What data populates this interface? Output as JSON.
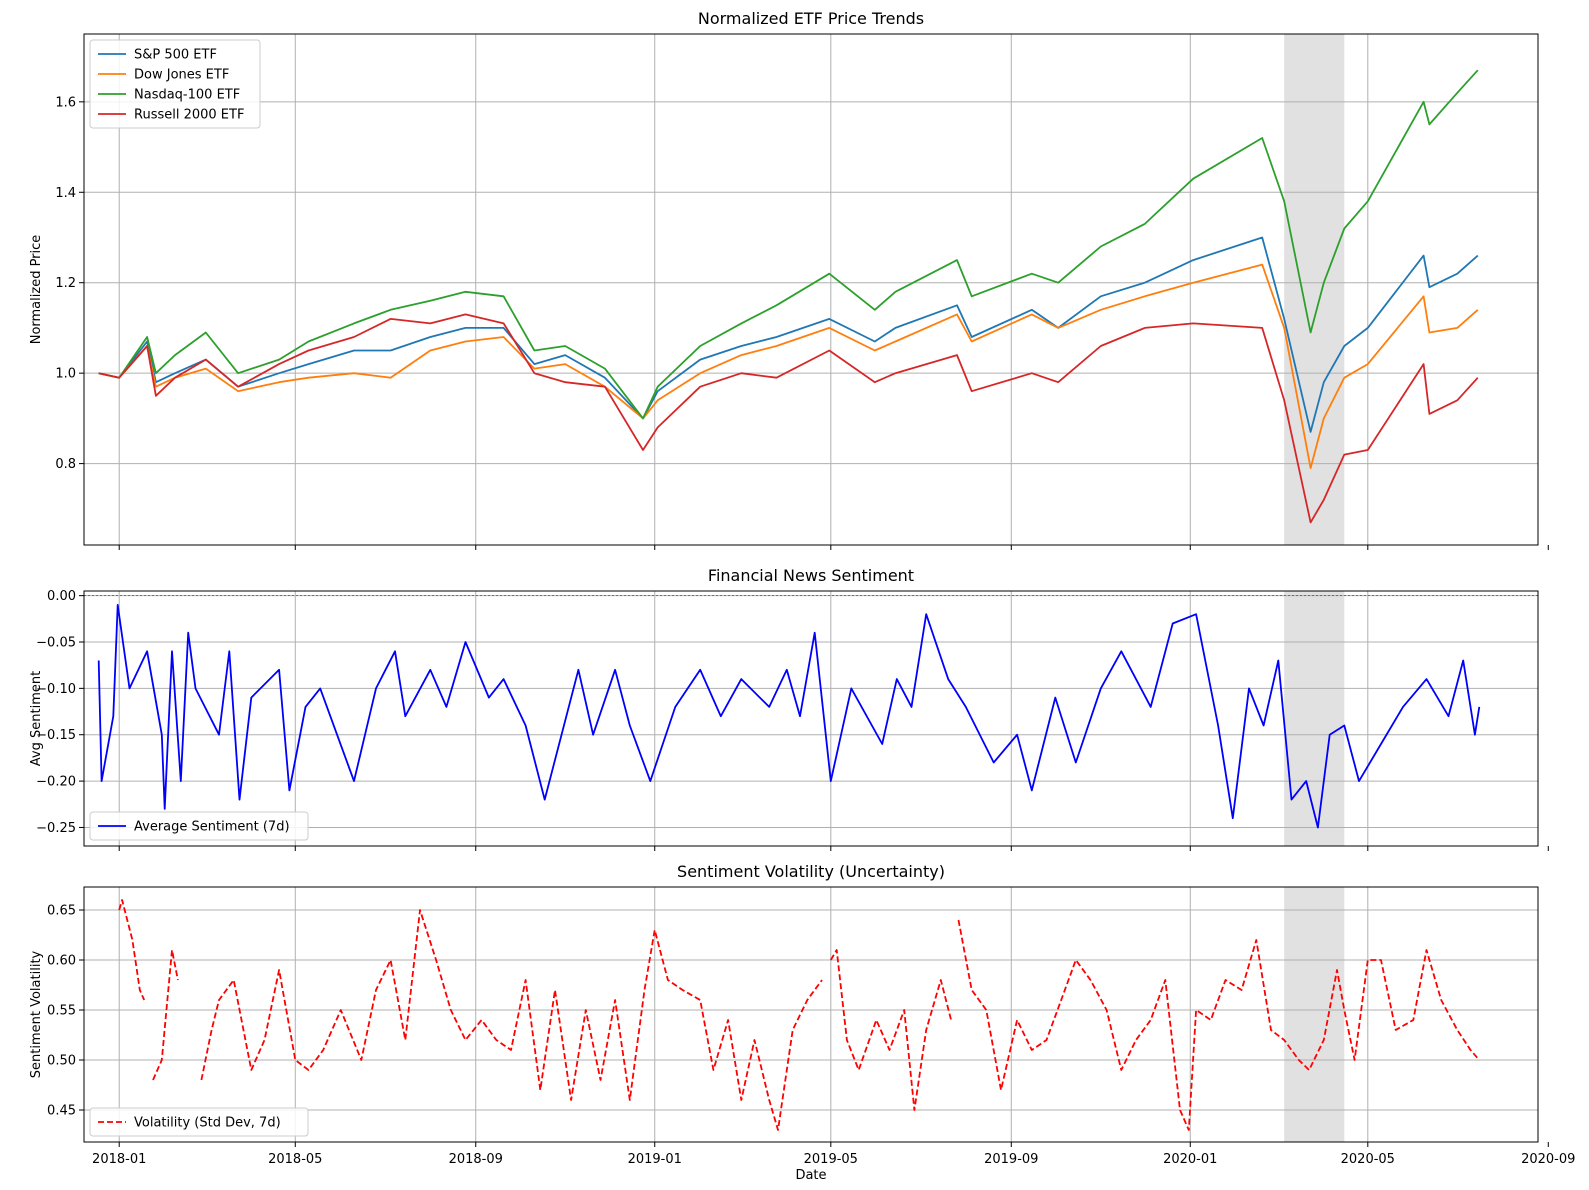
{
  "chart_data": [
    {
      "type": "line",
      "title": "Normalized ETF Price Trends",
      "xlabel": "",
      "ylabel": "Normalized Price",
      "xlim": [
        "2017-12-08",
        "2020-08-25"
      ],
      "ylim": [
        0.62,
        1.75
      ],
      "yticks": [
        0.8,
        1.0,
        1.2,
        1.4,
        1.6
      ],
      "ytick_labels": [
        "0.8",
        "1.0",
        "1.2",
        "1.4",
        "1.6"
      ],
      "grid": true,
      "legend_position": "upper left",
      "shaded_region": {
        "start": "2020-03-05",
        "end": "2020-04-15"
      },
      "series": [
        {
          "name": "S&P 500 ETF",
          "color": "#1f77b4",
          "x": [
            "2017-12-18",
            "2018-01-01",
            "2018-01-20",
            "2018-01-26",
            "2018-02-08",
            "2018-03-01",
            "2018-03-23",
            "2018-04-20",
            "2018-05-10",
            "2018-06-10",
            "2018-07-05",
            "2018-08-01",
            "2018-08-25",
            "2018-09-20",
            "2018-10-11",
            "2018-11-01",
            "2018-11-28",
            "2018-12-24",
            "2019-01-03",
            "2019-02-01",
            "2019-03-01",
            "2019-03-25",
            "2019-04-30",
            "2019-05-31",
            "2019-06-14",
            "2019-07-26",
            "2019-08-05",
            "2019-09-15",
            "2019-10-03",
            "2019-11-01",
            "2019-12-01",
            "2020-01-03",
            "2020-02-19",
            "2020-03-05",
            "2020-03-23",
            "2020-04-01",
            "2020-04-15",
            "2020-05-01",
            "2020-06-08",
            "2020-06-12",
            "2020-07-01",
            "2020-07-15"
          ],
          "values": [
            1.0,
            0.99,
            1.07,
            0.98,
            1.0,
            1.03,
            0.97,
            1.0,
            1.02,
            1.05,
            1.05,
            1.08,
            1.1,
            1.1,
            1.02,
            1.04,
            0.99,
            0.9,
            0.96,
            1.03,
            1.06,
            1.08,
            1.12,
            1.07,
            1.1,
            1.15,
            1.08,
            1.14,
            1.1,
            1.17,
            1.2,
            1.25,
            1.3,
            1.12,
            0.87,
            0.98,
            1.06,
            1.1,
            1.26,
            1.19,
            1.22,
            1.26
          ]
        },
        {
          "name": "Dow Jones ETF",
          "color": "#ff7f0e",
          "x": [
            "2017-12-18",
            "2018-01-01",
            "2018-01-20",
            "2018-01-26",
            "2018-02-08",
            "2018-03-01",
            "2018-03-23",
            "2018-04-20",
            "2018-05-10",
            "2018-06-10",
            "2018-07-05",
            "2018-08-01",
            "2018-08-25",
            "2018-09-20",
            "2018-10-11",
            "2018-11-01",
            "2018-11-28",
            "2018-12-24",
            "2019-01-03",
            "2019-02-01",
            "2019-03-01",
            "2019-03-25",
            "2019-04-30",
            "2019-05-31",
            "2019-06-14",
            "2019-07-26",
            "2019-08-05",
            "2019-09-15",
            "2019-10-03",
            "2019-11-01",
            "2019-12-01",
            "2020-01-03",
            "2020-02-19",
            "2020-03-05",
            "2020-03-23",
            "2020-04-01",
            "2020-04-15",
            "2020-05-01",
            "2020-06-08",
            "2020-06-12",
            "2020-07-01",
            "2020-07-15"
          ],
          "values": [
            1.0,
            0.99,
            1.06,
            0.97,
            0.99,
            1.01,
            0.96,
            0.98,
            0.99,
            1.0,
            0.99,
            1.05,
            1.07,
            1.08,
            1.01,
            1.02,
            0.97,
            0.9,
            0.94,
            1.0,
            1.04,
            1.06,
            1.1,
            1.05,
            1.07,
            1.13,
            1.07,
            1.13,
            1.1,
            1.14,
            1.17,
            1.2,
            1.24,
            1.1,
            0.79,
            0.9,
            0.99,
            1.02,
            1.17,
            1.09,
            1.1,
            1.14
          ]
        },
        {
          "name": "Nasdaq-100 ETF",
          "color": "#2ca02c",
          "x": [
            "2017-12-18",
            "2018-01-01",
            "2018-01-20",
            "2018-01-26",
            "2018-02-08",
            "2018-03-01",
            "2018-03-23",
            "2018-04-20",
            "2018-05-10",
            "2018-06-10",
            "2018-07-05",
            "2018-08-01",
            "2018-08-25",
            "2018-09-20",
            "2018-10-11",
            "2018-11-01",
            "2018-11-28",
            "2018-12-24",
            "2019-01-03",
            "2019-02-01",
            "2019-03-01",
            "2019-03-25",
            "2019-04-30",
            "2019-05-31",
            "2019-06-14",
            "2019-07-26",
            "2019-08-05",
            "2019-09-15",
            "2019-10-03",
            "2019-11-01",
            "2019-12-01",
            "2020-01-03",
            "2020-02-19",
            "2020-03-05",
            "2020-03-23",
            "2020-04-01",
            "2020-04-15",
            "2020-05-01",
            "2020-06-08",
            "2020-06-12",
            "2020-07-01",
            "2020-07-15"
          ],
          "values": [
            1.0,
            0.99,
            1.08,
            1.0,
            1.04,
            1.09,
            1.0,
            1.03,
            1.07,
            1.11,
            1.14,
            1.16,
            1.18,
            1.17,
            1.05,
            1.06,
            1.01,
            0.9,
            0.97,
            1.06,
            1.11,
            1.15,
            1.22,
            1.14,
            1.18,
            1.25,
            1.17,
            1.22,
            1.2,
            1.28,
            1.33,
            1.43,
            1.52,
            1.38,
            1.09,
            1.2,
            1.32,
            1.38,
            1.6,
            1.55,
            1.62,
            1.67
          ]
        },
        {
          "name": "Russell 2000 ETF",
          "color": "#d62728",
          "x": [
            "2017-12-18",
            "2018-01-01",
            "2018-01-20",
            "2018-01-26",
            "2018-02-08",
            "2018-03-01",
            "2018-03-23",
            "2018-04-20",
            "2018-05-10",
            "2018-06-10",
            "2018-07-05",
            "2018-08-01",
            "2018-08-25",
            "2018-09-20",
            "2018-10-11",
            "2018-11-01",
            "2018-11-28",
            "2018-12-24",
            "2019-01-03",
            "2019-02-01",
            "2019-03-01",
            "2019-03-25",
            "2019-04-30",
            "2019-05-31",
            "2019-06-14",
            "2019-07-26",
            "2019-08-05",
            "2019-09-15",
            "2019-10-03",
            "2019-11-01",
            "2019-12-01",
            "2020-01-03",
            "2020-02-19",
            "2020-03-05",
            "2020-03-23",
            "2020-04-01",
            "2020-04-15",
            "2020-05-01",
            "2020-06-08",
            "2020-06-12",
            "2020-07-01",
            "2020-07-15"
          ],
          "values": [
            1.0,
            0.99,
            1.06,
            0.95,
            0.99,
            1.03,
            0.97,
            1.02,
            1.05,
            1.08,
            1.12,
            1.11,
            1.13,
            1.11,
            1.0,
            0.98,
            0.97,
            0.83,
            0.88,
            0.97,
            1.0,
            0.99,
            1.05,
            0.98,
            1.0,
            1.04,
            0.96,
            1.0,
            0.98,
            1.06,
            1.1,
            1.11,
            1.1,
            0.94,
            0.67,
            0.72,
            0.82,
            0.83,
            1.02,
            0.91,
            0.94,
            0.99
          ]
        }
      ]
    },
    {
      "type": "line",
      "title": "Financial News Sentiment",
      "xlabel": "",
      "ylabel": "Avg Sentiment",
      "xlim": [
        "2017-12-08",
        "2020-08-25"
      ],
      "ylim": [
        -0.27,
        0.005
      ],
      "yticks": [
        -0.25,
        -0.2,
        -0.15,
        -0.1,
        -0.05,
        0.0
      ],
      "ytick_labels": [
        "−0.25",
        "−0.20",
        "−0.15",
        "−0.10",
        "−0.05",
        "0.00"
      ],
      "grid": true,
      "legend_position": "lower left",
      "shaded_region": {
        "start": "2020-03-05",
        "end": "2020-04-15"
      },
      "reference_line": 0.0,
      "series": [
        {
          "name": "Average Sentiment (7d)",
          "color": "#0000ff",
          "x": [
            "2017-12-18",
            "2017-12-20",
            "2017-12-28",
            "2017-12-31",
            "2018-01-08",
            "2018-01-20",
            "2018-01-30",
            "2018-02-01",
            "2018-02-06",
            "2018-02-12",
            "2018-02-17",
            "2018-02-22",
            "2018-03-10",
            "2018-03-17",
            "2018-03-24",
            "2018-04-01",
            "2018-04-20",
            "2018-04-27",
            "2018-05-08",
            "2018-05-18",
            "2018-06-10",
            "2018-06-25",
            "2018-07-08",
            "2018-07-15",
            "2018-08-01",
            "2018-08-12",
            "2018-08-25",
            "2018-09-10",
            "2018-09-20",
            "2018-10-05",
            "2018-10-18",
            "2018-11-10",
            "2018-11-20",
            "2018-12-05",
            "2018-12-15",
            "2018-12-29",
            "2019-01-15",
            "2019-02-01",
            "2019-02-15",
            "2019-03-01",
            "2019-03-20",
            "2019-04-01",
            "2019-04-10",
            "2019-04-20",
            "2019-05-01",
            "2019-05-15",
            "2019-06-05",
            "2019-06-15",
            "2019-06-25",
            "2019-07-05",
            "2019-07-20",
            "2019-08-01",
            "2019-08-20",
            "2019-09-05",
            "2019-09-15",
            "2019-10-01",
            "2019-10-15",
            "2019-11-01",
            "2019-11-15",
            "2019-12-05",
            "2019-12-20",
            "2020-01-05",
            "2020-01-20",
            "2020-01-30",
            "2020-02-10",
            "2020-02-20",
            "2020-03-01",
            "2020-03-10",
            "2020-03-20",
            "2020-03-28",
            "2020-04-05",
            "2020-04-15",
            "2020-04-25",
            "2020-05-10",
            "2020-05-25",
            "2020-06-10",
            "2020-06-25",
            "2020-07-05",
            "2020-07-13",
            "2020-07-16"
          ],
          "values": [
            -0.07,
            -0.2,
            -0.13,
            -0.01,
            -0.1,
            -0.06,
            -0.15,
            -0.23,
            -0.06,
            -0.2,
            -0.04,
            -0.1,
            -0.15,
            -0.06,
            -0.22,
            -0.11,
            -0.08,
            -0.21,
            -0.12,
            -0.1,
            -0.2,
            -0.1,
            -0.06,
            -0.13,
            -0.08,
            -0.12,
            -0.05,
            -0.11,
            -0.09,
            -0.14,
            -0.22,
            -0.08,
            -0.15,
            -0.08,
            -0.14,
            -0.2,
            -0.12,
            -0.08,
            -0.13,
            -0.09,
            -0.12,
            -0.08,
            -0.13,
            -0.04,
            -0.2,
            -0.1,
            -0.16,
            -0.09,
            -0.12,
            -0.02,
            -0.09,
            -0.12,
            -0.18,
            -0.15,
            -0.21,
            -0.11,
            -0.18,
            -0.1,
            -0.06,
            -0.12,
            -0.03,
            -0.02,
            -0.14,
            -0.24,
            -0.1,
            -0.14,
            -0.07,
            -0.22,
            -0.2,
            -0.25,
            -0.15,
            -0.14,
            -0.2,
            -0.16,
            -0.12,
            -0.09,
            -0.13,
            -0.07,
            -0.15,
            -0.12
          ]
        }
      ]
    },
    {
      "type": "line",
      "title": "Sentiment Volatility (Uncertainty)",
      "xlabel": "Date",
      "ylabel": "Sentiment Volatility",
      "xlim": [
        "2017-12-08",
        "2020-08-25"
      ],
      "ylim": [
        0.418,
        0.673
      ],
      "yticks": [
        0.45,
        0.5,
        0.55,
        0.6,
        0.65
      ],
      "ytick_labels": [
        "0.45",
        "0.50",
        "0.55",
        "0.60",
        "0.65"
      ],
      "xticks": [
        "2018-01-01",
        "2018-05-01",
        "2018-09-01",
        "2019-01-01",
        "2019-05-01",
        "2019-09-01",
        "2020-01-01",
        "2020-05-01",
        "2020-09-01"
      ],
      "xtick_labels": [
        "2018-01",
        "2018-05",
        "2018-09",
        "2019-01",
        "2019-05",
        "2019-09",
        "2020-01",
        "2020-05",
        "2020-09"
      ],
      "grid": true,
      "legend_position": "lower left",
      "shaded_region": {
        "start": "2020-03-05",
        "end": "2020-04-15"
      },
      "series": [
        {
          "name": "Volatility (Std Dev, 7d)",
          "color": "#ff0000",
          "line_style": "dashed",
          "x": [
            "2018-01-01",
            "2018-01-03",
            "2018-01-10",
            "2018-01-15",
            "2018-01-18",
            null,
            "2018-01-24",
            "2018-01-30",
            "2018-02-06",
            "2018-02-10",
            null,
            "2018-02-26",
            "2018-03-05",
            "2018-03-10",
            "2018-03-20",
            "2018-04-01",
            "2018-04-10",
            "2018-04-20",
            "2018-05-01",
            "2018-05-10",
            "2018-05-20",
            "2018-06-01",
            "2018-06-15",
            "2018-06-25",
            "2018-07-05",
            "2018-07-15",
            "2018-07-25",
            "2018-08-05",
            "2018-08-15",
            "2018-08-25",
            "2018-09-05",
            "2018-09-15",
            "2018-09-25",
            "2018-10-05",
            "2018-10-15",
            "2018-10-25",
            "2018-11-05",
            "2018-11-15",
            "2018-11-25",
            "2018-12-05",
            "2018-12-15",
            "2018-12-25",
            "2019-01-01",
            "2019-01-10",
            "2019-01-20",
            "2019-02-01",
            "2019-02-10",
            "2019-02-20",
            "2019-03-01",
            "2019-03-10",
            "2019-03-20",
            "2019-03-26",
            "2019-04-05",
            "2019-04-15",
            "2019-04-25",
            null,
            "2019-05-01",
            "2019-05-05",
            "2019-05-12",
            "2019-05-20",
            "2019-06-01",
            "2019-06-10",
            "2019-06-20",
            "2019-06-27",
            "2019-07-05",
            "2019-07-15",
            "2019-07-22",
            null,
            "2019-07-27",
            "2019-08-05",
            "2019-08-15",
            "2019-08-25",
            "2019-09-05",
            "2019-09-15",
            "2019-09-25",
            "2019-10-05",
            "2019-10-15",
            "2019-10-25",
            "2019-11-05",
            "2019-11-15",
            "2019-11-25",
            "2019-12-05",
            "2019-12-15",
            "2019-12-25",
            "2019-12-31",
            "2020-01-05",
            "2020-01-15",
            "2020-01-25",
            "2020-02-05",
            "2020-02-15",
            "2020-02-25",
            "2020-03-05",
            "2020-03-15",
            "2020-03-22",
            "2020-04-01",
            "2020-04-10",
            "2020-04-15",
            "2020-04-22",
            "2020-05-01",
            "2020-05-10",
            "2020-05-20",
            "2020-06-01",
            "2020-06-10",
            "2020-06-20",
            "2020-07-01",
            "2020-07-10",
            "2020-07-16"
          ],
          "values": [
            0.65,
            0.66,
            0.62,
            0.57,
            0.56,
            null,
            0.48,
            0.5,
            0.61,
            0.58,
            null,
            0.48,
            0.53,
            0.56,
            0.58,
            0.49,
            0.52,
            0.59,
            0.5,
            0.49,
            0.51,
            0.55,
            0.5,
            0.57,
            0.6,
            0.52,
            0.65,
            0.6,
            0.55,
            0.52,
            0.54,
            0.52,
            0.51,
            0.58,
            0.47,
            0.57,
            0.46,
            0.55,
            0.48,
            0.56,
            0.46,
            0.57,
            0.63,
            0.58,
            0.57,
            0.56,
            0.49,
            0.54,
            0.46,
            0.52,
            0.46,
            0.43,
            0.53,
            0.56,
            0.58,
            null,
            0.6,
            0.61,
            0.52,
            0.49,
            0.54,
            0.51,
            0.55,
            0.45,
            0.53,
            0.58,
            0.54,
            null,
            0.64,
            0.57,
            0.55,
            0.47,
            0.54,
            0.51,
            0.52,
            0.56,
            0.6,
            0.58,
            0.55,
            0.49,
            0.52,
            0.54,
            0.58,
            0.45,
            0.43,
            0.55,
            0.54,
            0.58,
            0.57,
            0.62,
            0.53,
            0.52,
            0.5,
            0.49,
            0.52,
            0.59,
            0.55,
            0.5,
            0.6,
            0.6,
            0.53,
            0.54,
            0.61,
            0.56,
            0.53,
            0.51,
            0.5
          ]
        }
      ]
    }
  ]
}
